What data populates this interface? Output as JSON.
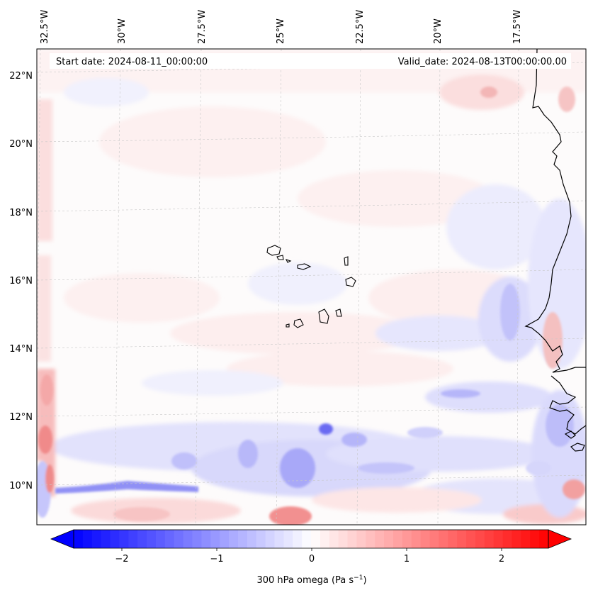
{
  "header": {
    "start_date": "Start date: 2024-08-11_00:00:00",
    "valid_date": "Valid_date: 2024-08-13T00:00:00.00"
  },
  "lon_labels": [
    "32.5°W",
    "30°W",
    "27.5°W",
    "25°W",
    "22.5°W",
    "20°W",
    "17.5°W"
  ],
  "lat_labels": [
    "22°N",
    "20°N",
    "18°N",
    "16°N",
    "14°N",
    "12°N",
    "10°N"
  ],
  "colorbar": {
    "title_main": "300 hPa omega (Pa s",
    "title_exp": "−1",
    "title_end": ")",
    "ticks": [
      "−2",
      "−1",
      "0",
      "1",
      "2"
    ],
    "range": [
      -2.6,
      2.6
    ],
    "negative_color": "#0000ff",
    "positive_color": "#ff0000",
    "zero_color": "#ffffff"
  },
  "field_colors": {
    "weak_positive": "#fdecec",
    "weak_negative": "#ececfd",
    "medium_negative": "#c9c9fb",
    "strong_negative": "#8c8cf6",
    "medium_positive": "#f9c9c9",
    "strong_positive": "#f49a9a"
  }
}
